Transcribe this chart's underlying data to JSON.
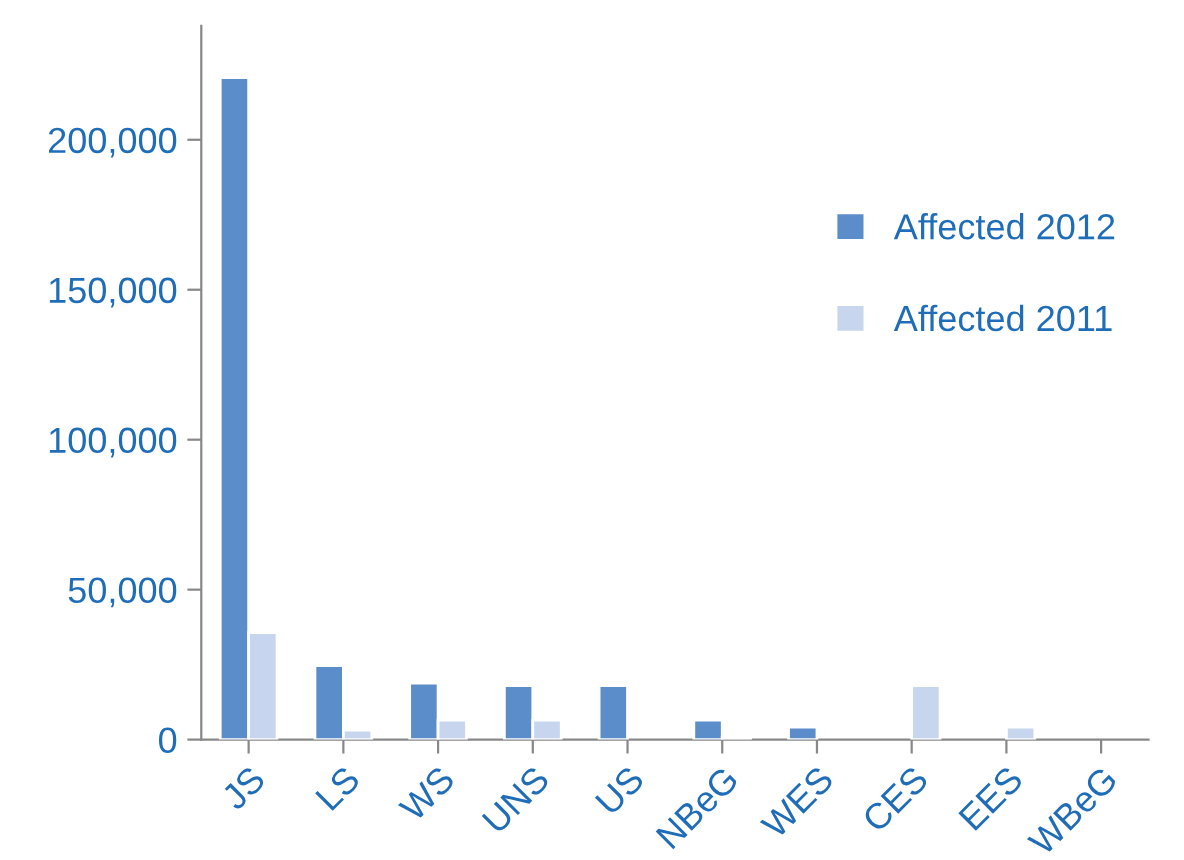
{
  "chart_data": {
    "type": "bar",
    "categories": [
      "JS",
      "LS",
      "WS",
      "UNS",
      "US",
      "NBeG",
      "WES",
      "CES",
      "EES",
      "WBeG"
    ],
    "series": [
      {
        "name": "Affected 2012",
        "color": "#5b8dcb",
        "values": [
          220700,
          24700,
          18800,
          18000,
          18000,
          6500,
          4200,
          null,
          null,
          null
        ]
      },
      {
        "name": "Affected 2011",
        "color": "#c7d6ee",
        "values": [
          35700,
          3200,
          6500,
          6500,
          null,
          700,
          null,
          18000,
          4200,
          null
        ]
      }
    ],
    "ylim": [
      0,
      238000
    ],
    "yticks": [
      {
        "value": 0,
        "label": "0"
      },
      {
        "value": 50000,
        "label": "50,000"
      },
      {
        "value": 100000,
        "label": "100,000"
      },
      {
        "value": 150000,
        "label": "150,000"
      },
      {
        "value": 200000,
        "label": "200,000"
      }
    ],
    "grid": false,
    "legend": "right"
  }
}
